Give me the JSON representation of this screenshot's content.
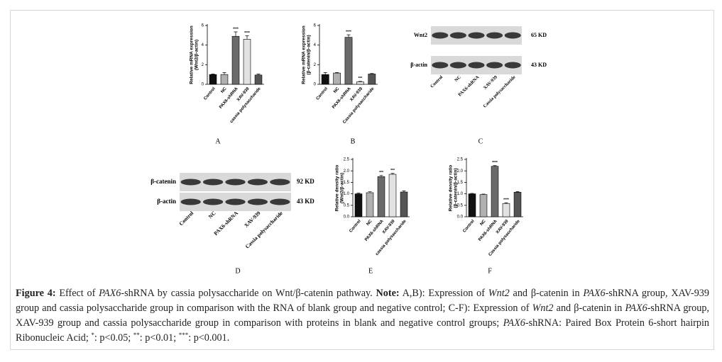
{
  "chart_data": [
    {
      "type": "bar",
      "panel": "A",
      "y_label": [
        "Relative mRNA expression",
        "(Wnt2/β-actin)"
      ],
      "categories": [
        "Control",
        "NC",
        "PAX6-shRNA",
        "XAV-939",
        "cassia polysaccharide"
      ],
      "values": [
        1.0,
        1.0,
        4.9,
        4.6,
        0.95
      ],
      "errors": [
        0.05,
        0.2,
        0.45,
        0.35,
        0.1
      ],
      "colors": [
        "#111111",
        "#b0b0b0",
        "#6a6a6a",
        "#e2e2e2",
        "#555555"
      ],
      "annotations": [
        null,
        null,
        "****",
        "****",
        null
      ],
      "ylim": [
        0,
        6
      ],
      "yticks": [
        0,
        2,
        4,
        6
      ]
    },
    {
      "type": "bar",
      "panel": "B",
      "y_label": [
        "Relative mRNA expression",
        "(β-catenin/β-actin)"
      ],
      "categories": [
        "Control",
        "NC",
        "PAX6-shRNA",
        "XAV-939",
        "Cassia polysaccharide"
      ],
      "values": [
        1.0,
        1.15,
        4.8,
        0.25,
        1.05
      ],
      "errors": [
        0.2,
        0.05,
        0.25,
        0.05,
        0.05
      ],
      "colors": [
        "#111111",
        "#b0b0b0",
        "#6a6a6a",
        "#e2e2e2",
        "#555555"
      ],
      "annotations": [
        null,
        null,
        "****",
        "***",
        null
      ],
      "ylim": [
        0,
        6
      ],
      "yticks": [
        0,
        2,
        4,
        6
      ]
    },
    {
      "type": "blot",
      "panel": "C",
      "bands": [
        "Wnt2",
        "β-actin"
      ],
      "sizes": [
        "65 KD",
        "43 KD"
      ],
      "lanes": [
        "Control",
        "NC",
        "PAX6-shRNA",
        "XAV-939",
        "Cassia polysaccharide"
      ]
    },
    {
      "type": "blot",
      "panel": "D",
      "bands": [
        "β-catenin",
        "β-actin"
      ],
      "sizes": [
        "92 KD",
        "43 KD"
      ],
      "lanes": [
        "Control",
        "NC",
        "PAX6-shRNA",
        "XAV-939",
        "Cassia polysaccharide"
      ]
    },
    {
      "type": "bar",
      "panel": "E",
      "y_label": [
        "Relative density ratio",
        "(Wnt2/β-actin)"
      ],
      "categories": [
        "Control",
        "NC",
        "PAX6-shRNA",
        "XAV-939",
        "cassia polysaccharide"
      ],
      "values": [
        1.0,
        1.05,
        1.75,
        1.85,
        1.08
      ],
      "errors": [
        0.03,
        0.04,
        0.05,
        0.04,
        0.05
      ],
      "colors": [
        "#111111",
        "#b0b0b0",
        "#6a6a6a",
        "#e2e2e2",
        "#555555"
      ],
      "annotations": [
        null,
        null,
        "***",
        "***",
        null
      ],
      "ylim": [
        0,
        2.5
      ],
      "yticks": [
        {
          "value": 0,
          "label": "0.0"
        },
        0.5,
        {
          "value": 1,
          "label": "1.0"
        },
        1.5,
        {
          "value": 2,
          "label": "2.0"
        },
        2.5
      ]
    },
    {
      "type": "bar",
      "panel": "F",
      "y_label": [
        "Relative density ratio",
        "(β-catenin/β-actin)"
      ],
      "categories": [
        "Control",
        "NC",
        "PAX6-shRNA",
        "XAV-939",
        "Cassia polysaccharide"
      ],
      "values": [
        1.0,
        0.97,
        2.2,
        0.58,
        1.07
      ],
      "errors": [
        0.02,
        0.02,
        0.03,
        0.03,
        0.03
      ],
      "colors": [
        "#111111",
        "#b0b0b0",
        "#6a6a6a",
        "#e2e2e2",
        "#555555"
      ],
      "annotations": [
        null,
        null,
        "****",
        "****",
        null
      ],
      "ylim": [
        0,
        2.5
      ],
      "yticks": [
        {
          "value": 0,
          "label": "0.0"
        },
        0.5,
        {
          "value": 1,
          "label": "1.0"
        },
        1.5,
        {
          "value": 2,
          "label": "2.0"
        },
        2.5
      ]
    }
  ],
  "caption": [
    {
      "text": "Figure 4:",
      "style": "b"
    },
    {
      "text": " Effect of "
    },
    {
      "text": "PAX6",
      "style": "i"
    },
    {
      "text": "-shRNA by cassia polysaccharide on Wnt/β-catenin pathway. "
    },
    {
      "text": "Note:",
      "style": "b"
    },
    {
      "text": " A,B): Expression of "
    },
    {
      "text": "Wnt2",
      "style": "i"
    },
    {
      "text": " and β-catenin in "
    },
    {
      "text": "PAX6",
      "style": "i"
    },
    {
      "text": "-shRNA group, XAV-939 group and cassia polysaccharide group in comparison with the RNA of blank group and negative control; C-F): Expression of "
    },
    {
      "text": "Wnt2",
      "style": "i"
    },
    {
      "text": " and β-catenin in "
    },
    {
      "text": "PAX6",
      "style": "i"
    },
    {
      "text": "-shRNA group, XAV-939 group and cassia polysaccharide group in comparison with proteins in blank and negative control groups; "
    },
    {
      "text": "PAX6",
      "style": "i"
    },
    {
      "text": "-shRNA: Paired Box Protein 6-short hairpin Ribonucleic Acid; "
    },
    {
      "text": "*",
      "style": "sup"
    },
    {
      "text": ": p<0.05; "
    },
    {
      "text": "**",
      "style": "sup"
    },
    {
      "text": ": p<0.01; "
    },
    {
      "text": "***",
      "style": "sup"
    },
    {
      "text": ": p<0.001."
    }
  ]
}
